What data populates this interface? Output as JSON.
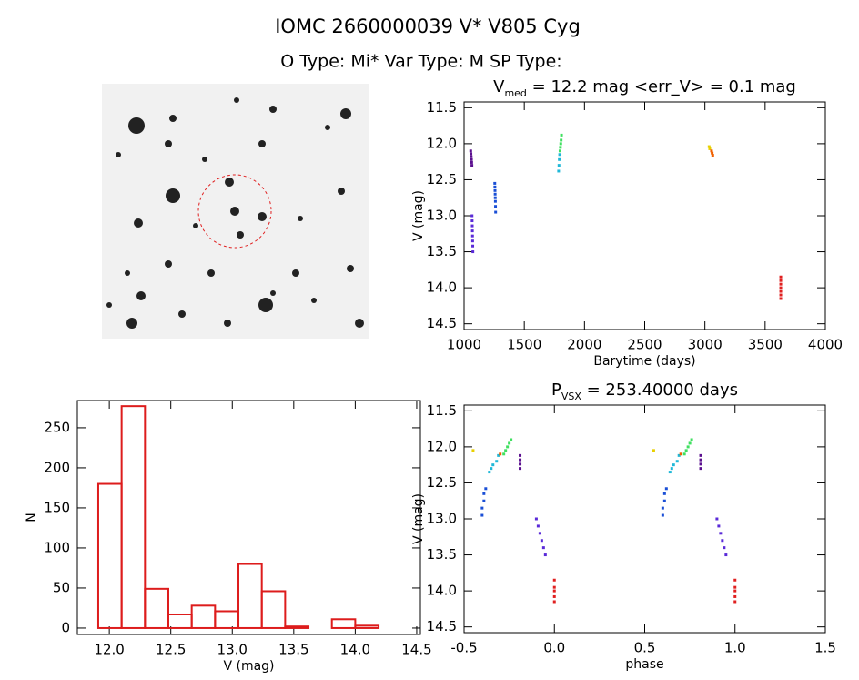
{
  "header": {
    "title": "IOMC 2660000039    V* V805 Cyg",
    "subtitle": "O Type: Mi*  Var Type: M  SP Type:"
  },
  "chart_data": [
    {
      "type": "scatter",
      "title": [
        "V",
        "med",
        " = 12.2 mag <err_V> = 0.1 mag"
      ],
      "x_label": "Barytime (days)",
      "y_label": "V (mag)",
      "xlim": [
        1000,
        4000
      ],
      "xticks": [
        1000,
        1500,
        2000,
        2500,
        3000,
        3500,
        4000
      ],
      "ylim": [
        14.58,
        11.42
      ],
      "yticks": [
        11.5,
        {
          "value": 12,
          "label": "12.0"
        },
        12.5,
        {
          "value": 13,
          "label": "13.0"
        },
        13.5,
        {
          "value": 14,
          "label": "14.0"
        },
        14.5
      ],
      "series": [
        {
          "color": "#5b0f8f",
          "x": [
            1055,
            1057,
            1059,
            1061,
            1063,
            1065
          ],
          "y": [
            12.1,
            12.14,
            12.18,
            12.22,
            12.26,
            12.3
          ]
        },
        {
          "color": "#5a2ad8",
          "x": [
            1066,
            1067,
            1068,
            1069,
            1070,
            1071,
            1072,
            1073
          ],
          "y": [
            13.0,
            13.07,
            13.14,
            13.21,
            13.28,
            13.35,
            13.42,
            13.5
          ]
        },
        {
          "color": "#1a4fd6",
          "x": [
            1255,
            1256,
            1257,
            1258,
            1259,
            1260,
            1261,
            1262
          ],
          "y": [
            12.55,
            12.6,
            12.65,
            12.7,
            12.75,
            12.8,
            12.87,
            12.95
          ]
        },
        {
          "color": "#20b8d8",
          "x": [
            1785,
            1788,
            1791,
            1794
          ],
          "y": [
            12.38,
            12.3,
            12.22,
            12.15
          ]
        },
        {
          "color": "#40e060",
          "x": [
            1797,
            1800,
            1803,
            1806,
            1809
          ],
          "y": [
            12.1,
            12.05,
            12.0,
            11.95,
            11.88
          ]
        },
        {
          "color": "#e8d000",
          "x": [
            3035,
            3040
          ],
          "y": [
            12.04,
            12.07
          ]
        },
        {
          "color": "#f06000",
          "x": [
            3055,
            3060,
            3065
          ],
          "y": [
            12.1,
            12.13,
            12.16
          ]
        },
        {
          "color": "#e02020",
          "x": [
            3630,
            3630,
            3630,
            3630,
            3630,
            3630,
            3630
          ],
          "y": [
            13.85,
            13.9,
            13.95,
            14.0,
            14.05,
            14.1,
            14.15
          ]
        }
      ]
    },
    {
      "type": "scatter",
      "title": [
        "P",
        "VSX",
        " = 253.40000 days"
      ],
      "x_label": "phase",
      "y_label": "V (mag)",
      "xlim": [
        -0.5,
        1.5
      ],
      "xticks": [
        -0.5,
        {
          "value": 0,
          "label": "0.0"
        },
        0.5,
        {
          "value": 1,
          "label": "1.0"
        },
        1.5
      ],
      "ylim": [
        14.58,
        11.42
      ],
      "yticks": [
        11.5,
        {
          "value": 12,
          "label": "12.0"
        },
        12.5,
        {
          "value": 13,
          "label": "13.0"
        },
        13.5,
        {
          "value": 14,
          "label": "14.0"
        },
        14.5
      ],
      "series": [
        {
          "color": "#e8d000",
          "x": [
            -0.45,
            0.55
          ],
          "y": [
            12.05,
            12.05
          ]
        },
        {
          "color": "#20b8d8",
          "x": [
            -0.36,
            -0.35,
            -0.34,
            -0.32,
            -0.31,
            0.64,
            0.65,
            0.66,
            0.68,
            0.69
          ],
          "y": [
            12.35,
            12.3,
            12.25,
            12.2,
            12.12,
            12.35,
            12.3,
            12.25,
            12.2,
            12.12
          ]
        },
        {
          "color": "#40e060",
          "x": [
            -0.28,
            -0.27,
            -0.26,
            -0.25,
            -0.24,
            0.72,
            0.73,
            0.74,
            0.75,
            0.76
          ],
          "y": [
            12.1,
            12.05,
            12.0,
            11.95,
            11.9,
            12.1,
            12.05,
            12.0,
            11.95,
            11.9
          ]
        },
        {
          "color": "#f06000",
          "x": [
            -0.3,
            0.7
          ],
          "y": [
            12.1,
            12.1
          ]
        },
        {
          "color": "#5b0f8f",
          "x": [
            -0.19,
            -0.19,
            -0.19,
            -0.19,
            0.81,
            0.81,
            0.81,
            0.81
          ],
          "y": [
            12.12,
            12.18,
            12.24,
            12.3,
            12.12,
            12.18,
            12.24,
            12.3
          ]
        },
        {
          "color": "#1a4fd6",
          "x": [
            -0.4,
            -0.4,
            -0.39,
            -0.39,
            -0.38,
            0.6,
            0.6,
            0.61,
            0.61,
            0.62
          ],
          "y": [
            12.95,
            12.85,
            12.75,
            12.65,
            12.58,
            12.95,
            12.85,
            12.75,
            12.65,
            12.58
          ]
        },
        {
          "color": "#5a2ad8",
          "x": [
            -0.1,
            -0.09,
            -0.08,
            -0.07,
            -0.06,
            -0.05,
            0.9,
            0.91,
            0.92,
            0.93,
            0.94,
            0.95
          ],
          "y": [
            13.0,
            13.1,
            13.2,
            13.3,
            13.4,
            13.5,
            13.0,
            13.1,
            13.2,
            13.3,
            13.4,
            13.5
          ]
        },
        {
          "color": "#e02020",
          "x": [
            0,
            0,
            0,
            0,
            0,
            1,
            1,
            1,
            1,
            1
          ],
          "y": [
            13.85,
            13.95,
            14.0,
            14.08,
            14.15,
            13.85,
            13.95,
            14.0,
            14.08,
            14.15
          ]
        }
      ]
    },
    {
      "type": "histogram",
      "x_label": "V (mag)",
      "y_label": "N",
      "color": "#dd1c1c",
      "bins": [
        11.91,
        12.1,
        12.29,
        12.48,
        12.67,
        12.86,
        13.05,
        13.24,
        13.43,
        13.62,
        13.81,
        14.0,
        14.19
      ],
      "values": [
        180,
        277,
        49,
        17,
        28,
        21,
        80,
        46,
        2,
        0,
        11,
        3
      ],
      "xlim": [
        11.74,
        14.53
      ],
      "xticks": [
        {
          "value": 12,
          "label": "12.0"
        },
        12.5,
        {
          "value": 13,
          "label": "13.0"
        },
        13.5,
        {
          "value": 14,
          "label": "14.0"
        },
        14.5
      ],
      "ylim": [
        -8,
        284
      ],
      "yticks": [
        0,
        50,
        100,
        150,
        200,
        250
      ]
    }
  ]
}
